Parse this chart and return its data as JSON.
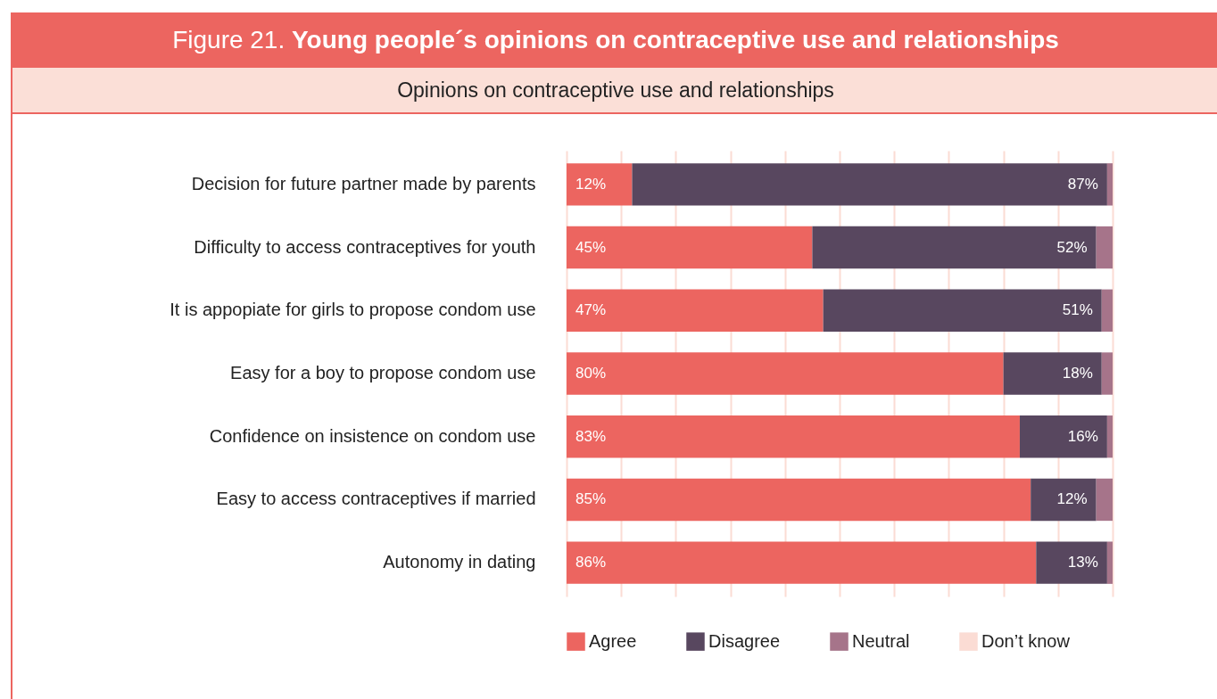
{
  "chart_data": {
    "type": "bar",
    "orientation": "horizontal",
    "stacked": true,
    "title": "Figure 21. Young people´s opinions on contraceptive use and relationships",
    "subtitle": "Opinions on contraceptive use and relationships",
    "categories": [
      "Decision for future partner made by parents",
      "Difficulty to access contraceptives for youth",
      "It is appopiate for girls to propose condom use",
      "Easy for a boy to propose condom use",
      "Confidence on insistence on condom use",
      "Easy to access contraceptives if married",
      "Autonomy in dating"
    ],
    "series": [
      {
        "name": "Agree",
        "color": "#ec6560",
        "values": [
          12,
          45,
          47,
          80,
          83,
          85,
          86
        ],
        "value_labels": [
          "12%",
          "45%",
          "47%",
          "80%",
          "83%",
          "85%",
          "86%"
        ]
      },
      {
        "name": "Disagree",
        "color": "#58475f",
        "values": [
          87,
          52,
          51,
          18,
          16,
          12,
          13
        ],
        "value_labels": [
          "87%",
          "52%",
          "51%",
          "18%",
          "16%",
          "12%",
          "13%"
        ]
      },
      {
        "name": "Neutral",
        "color": "#a6748a",
        "values": [
          1,
          3,
          2,
          2,
          1,
          3,
          1
        ]
      },
      {
        "name": "Don’t know",
        "color": "#fbdcd4",
        "values": [
          null,
          null,
          null,
          null,
          null,
          null,
          null
        ]
      }
    ],
    "xlim": [
      0,
      100
    ],
    "xticks": [
      {
        "value": 0,
        "label": null
      },
      {
        "value": 10,
        "label": null
      },
      {
        "value": 20,
        "label": null
      },
      {
        "value": 30,
        "label": null
      },
      {
        "value": 40,
        "label": null
      },
      {
        "value": 50,
        "label": null
      },
      {
        "value": 60,
        "label": null
      },
      {
        "value": 70,
        "label": null
      },
      {
        "value": 80,
        "label": null
      },
      {
        "value": 90,
        "label": null
      },
      {
        "value": 100,
        "label": null
      }
    ],
    "tick_labels": "y",
    "grid": "x",
    "legend": "bottom"
  }
}
